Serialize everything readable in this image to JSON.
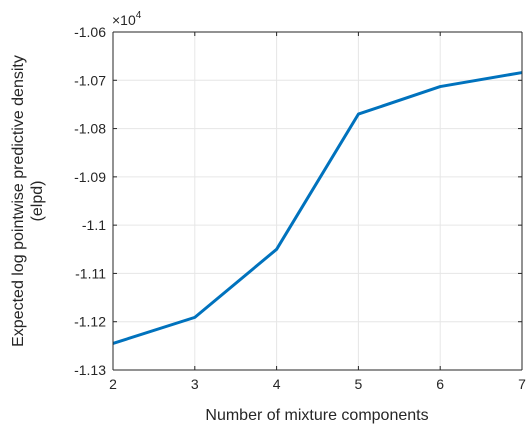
{
  "chart_data": {
    "type": "line",
    "title": "",
    "xlabel": "Number of mixture components",
    "ylabel_lines": [
      "Expected log pointwise predictive density",
      "(elpd)"
    ],
    "y_exponent_base": "×10",
    "y_exponent_power": "4",
    "xlim": [
      2,
      7
    ],
    "ylim": [
      -1.13,
      -1.06
    ],
    "x_ticks": [
      2,
      3,
      4,
      5,
      6,
      7
    ],
    "x_tick_labels": [
      "2",
      "3",
      "4",
      "5",
      "6",
      "7"
    ],
    "y_ticks": [
      -1.13,
      -1.12,
      -1.11,
      -1.1,
      -1.09,
      -1.08,
      -1.07,
      -1.06
    ],
    "y_tick_labels": [
      "-1.13",
      "-1.12",
      "-1.11",
      "-1.1",
      "-1.09",
      "-1.08",
      "-1.07",
      "-1.06"
    ],
    "grid": true,
    "line_color": "#0072BD",
    "series": [
      {
        "x": [
          2,
          3,
          4,
          5,
          6,
          7
        ],
        "values": [
          -1.1245,
          -1.1191,
          -1.105,
          -1.077,
          -1.0713,
          -1.0684
        ]
      }
    ]
  }
}
